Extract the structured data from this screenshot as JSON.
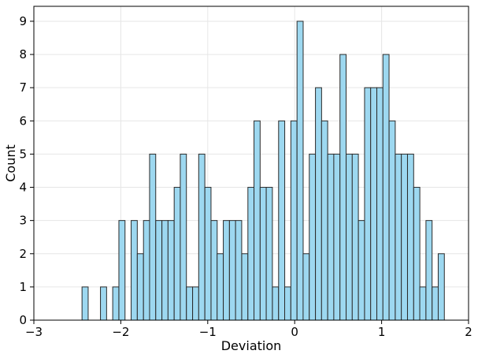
{
  "chart_data": {
    "type": "bar",
    "title": "",
    "xlabel": "Deviation",
    "ylabel": "Count",
    "xlim": [
      -3,
      2
    ],
    "ylim": [
      0,
      9.45
    ],
    "grid": true,
    "bar_color": "#9dd8f0",
    "edge_color": "#2b2b2b",
    "x_ticks": [
      -3,
      -2,
      -1,
      0,
      1,
      2
    ],
    "x_tick_labels": [
      "−3",
      "−2",
      "−1",
      "0",
      "1",
      "2"
    ],
    "y_ticks": [
      0,
      1,
      2,
      3,
      4,
      5,
      6,
      7,
      8,
      9
    ],
    "y_tick_labels": [
      "0",
      "1",
      "2",
      "3",
      "4",
      "5",
      "6",
      "7",
      "8",
      "9"
    ],
    "bin_width": 0.0706,
    "bins": [
      {
        "x": -2.446,
        "value": 1
      },
      {
        "x": -2.375,
        "value": 0
      },
      {
        "x": -2.304,
        "value": 0
      },
      {
        "x": -2.234,
        "value": 1
      },
      {
        "x": -2.163,
        "value": 0
      },
      {
        "x": -2.093,
        "value": 1
      },
      {
        "x": -2.022,
        "value": 3
      },
      {
        "x": -1.951,
        "value": 0
      },
      {
        "x": -1.881,
        "value": 3
      },
      {
        "x": -1.81,
        "value": 2
      },
      {
        "x": -1.739,
        "value": 3
      },
      {
        "x": -1.669,
        "value": 5
      },
      {
        "x": -1.598,
        "value": 3
      },
      {
        "x": -1.527,
        "value": 3
      },
      {
        "x": -1.457,
        "value": 3
      },
      {
        "x": -1.386,
        "value": 4
      },
      {
        "x": -1.316,
        "value": 5
      },
      {
        "x": -1.245,
        "value": 1
      },
      {
        "x": -1.174,
        "value": 1
      },
      {
        "x": -1.104,
        "value": 5
      },
      {
        "x": -1.033,
        "value": 4
      },
      {
        "x": -0.962,
        "value": 3
      },
      {
        "x": -0.892,
        "value": 2
      },
      {
        "x": -0.821,
        "value": 3
      },
      {
        "x": -0.75,
        "value": 3
      },
      {
        "x": -0.68,
        "value": 3
      },
      {
        "x": -0.609,
        "value": 2
      },
      {
        "x": -0.538,
        "value": 4
      },
      {
        "x": -0.468,
        "value": 6
      },
      {
        "x": -0.397,
        "value": 4
      },
      {
        "x": -0.327,
        "value": 4
      },
      {
        "x": -0.256,
        "value": 1
      },
      {
        "x": -0.185,
        "value": 6
      },
      {
        "x": -0.115,
        "value": 1
      },
      {
        "x": -0.044,
        "value": 6
      },
      {
        "x": 0.027,
        "value": 9
      },
      {
        "x": 0.097,
        "value": 2
      },
      {
        "x": 0.168,
        "value": 5
      },
      {
        "x": 0.239,
        "value": 7
      },
      {
        "x": 0.309,
        "value": 6
      },
      {
        "x": 0.38,
        "value": 5
      },
      {
        "x": 0.45,
        "value": 5
      },
      {
        "x": 0.521,
        "value": 8
      },
      {
        "x": 0.592,
        "value": 5
      },
      {
        "x": 0.662,
        "value": 5
      },
      {
        "x": 0.733,
        "value": 3
      },
      {
        "x": 0.804,
        "value": 7
      },
      {
        "x": 0.874,
        "value": 7
      },
      {
        "x": 0.945,
        "value": 7
      },
      {
        "x": 1.015,
        "value": 8
      },
      {
        "x": 1.086,
        "value": 6
      },
      {
        "x": 1.157,
        "value": 5
      },
      {
        "x": 1.227,
        "value": 5
      },
      {
        "x": 1.298,
        "value": 5
      },
      {
        "x": 1.369,
        "value": 4
      },
      {
        "x": 1.439,
        "value": 1
      },
      {
        "x": 1.51,
        "value": 3
      },
      {
        "x": 1.581,
        "value": 1
      },
      {
        "x": 1.651,
        "value": 2
      }
    ]
  }
}
